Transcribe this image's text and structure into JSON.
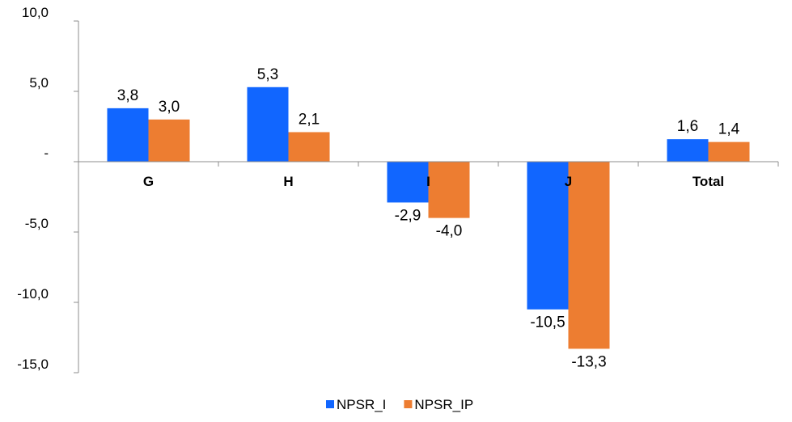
{
  "chart_data": {
    "type": "bar",
    "categories": [
      "G",
      "H",
      "I",
      "J",
      "Total"
    ],
    "series": [
      {
        "name": "NPSR_I",
        "color": "#1166ff",
        "values": [
          3.8,
          5.3,
          -2.9,
          -10.5,
          1.6
        ],
        "labels": [
          "3,8",
          "5,3",
          "-2,9",
          "-10,5",
          "1,6"
        ]
      },
      {
        "name": "NPSR_IP",
        "color": "#ed7d31",
        "values": [
          3.0,
          2.1,
          -4.0,
          -13.3,
          1.4
        ],
        "labels": [
          "3,0",
          "2,1",
          "-4,0",
          "-13,3",
          "1,4"
        ]
      }
    ],
    "ylim": [
      -15,
      10
    ],
    "yticks": [
      10,
      5,
      0,
      -5,
      -10,
      -15
    ],
    "ytick_labels": [
      "10,0",
      "5,0",
      "-",
      "-5,0",
      "-10,0",
      "-15,0"
    ],
    "legend_position": "bottom",
    "grid": false,
    "title": "",
    "xlabel": "",
    "ylabel": ""
  }
}
